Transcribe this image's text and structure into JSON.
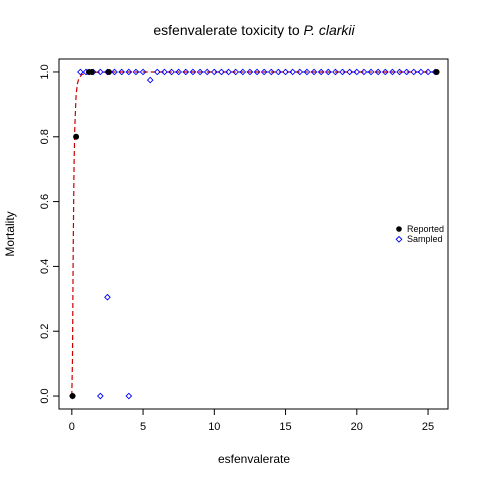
{
  "chart_data": {
    "type": "scatter",
    "title_prefix": "esfenvalerate toxicity to ",
    "title_italic": "P. clarkii",
    "xlabel": "esfenvalerate",
    "ylabel": "Mortality",
    "xlim": [
      -0.9,
      26.4
    ],
    "ylim": [
      -0.04,
      1.04
    ],
    "x_ticks": [
      0,
      5,
      10,
      15,
      20,
      25
    ],
    "y_ticks": [
      0.0,
      0.2,
      0.4,
      0.6,
      0.8,
      1.0
    ],
    "x_tick_labels": [
      "0",
      "5",
      "10",
      "15",
      "20",
      "25"
    ],
    "y_tick_labels": [
      "0.0",
      "0.2",
      "0.4",
      "0.6",
      "0.8",
      "1.0"
    ],
    "legend": {
      "position": "right",
      "entries": [
        {
          "label": "Reported",
          "marker": "filled-circle",
          "color": "#000000"
        },
        {
          "label": "Sampled",
          "marker": "open-diamond",
          "color": "#0000ff"
        }
      ]
    },
    "series": [
      {
        "name": "Reported",
        "marker": "filled-circle",
        "color": "#000000",
        "x": [
          0.05,
          0.3,
          1.2,
          1.4,
          2.6,
          25.6
        ],
        "y": [
          0.0,
          0.8,
          1.0,
          1.0,
          1.0,
          1.0
        ]
      },
      {
        "name": "Sampled",
        "marker": "open-diamond",
        "color": "#0000ff",
        "x": [
          0.05,
          0.6,
          1.0,
          1.5,
          2.0,
          2.5,
          3.0,
          3.5,
          4.0,
          4.5,
          5.0,
          5.5,
          6.0,
          6.5,
          7.0,
          7.5,
          8.0,
          8.5,
          9.0,
          9.5,
          10.0,
          10.5,
          11.0,
          11.5,
          12.0,
          12.5,
          13.0,
          13.5,
          14.0,
          14.5,
          15.0,
          15.5,
          16.0,
          16.5,
          17.0,
          17.5,
          18.0,
          18.5,
          19.0,
          19.5,
          20.0,
          20.5,
          21.0,
          21.5,
          22.0,
          22.5,
          23.0,
          23.5,
          24.0,
          24.5,
          25.0,
          25.5,
          2.0,
          2.5,
          4.0
        ],
        "y": [
          0.0,
          1.0,
          1.0,
          1.0,
          1.0,
          1.0,
          1.0,
          1.0,
          1.0,
          1.0,
          1.0,
          0.975,
          1.0,
          1.0,
          1.0,
          1.0,
          1.0,
          1.0,
          1.0,
          1.0,
          1.0,
          1.0,
          1.0,
          1.0,
          1.0,
          1.0,
          1.0,
          1.0,
          1.0,
          1.0,
          1.0,
          1.0,
          1.0,
          1.0,
          1.0,
          1.0,
          1.0,
          1.0,
          1.0,
          1.0,
          1.0,
          1.0,
          1.0,
          1.0,
          1.0,
          1.0,
          1.0,
          1.0,
          1.0,
          1.0,
          1.0,
          1.0,
          0.0,
          0.305,
          0.0
        ]
      },
      {
        "name": "fit",
        "line_style": "dashed",
        "color": "#cc0000",
        "x": [
          0.0,
          0.05,
          0.1,
          0.15,
          0.2,
          0.3,
          0.4,
          0.5,
          0.7,
          1.0,
          1.5,
          2.5,
          5.0,
          10.0,
          25.6
        ],
        "y": [
          0.0,
          0.12,
          0.45,
          0.7,
          0.82,
          0.93,
          0.965,
          0.98,
          0.992,
          0.997,
          0.999,
          1.0,
          1.0,
          1.0,
          1.0
        ]
      }
    ]
  }
}
